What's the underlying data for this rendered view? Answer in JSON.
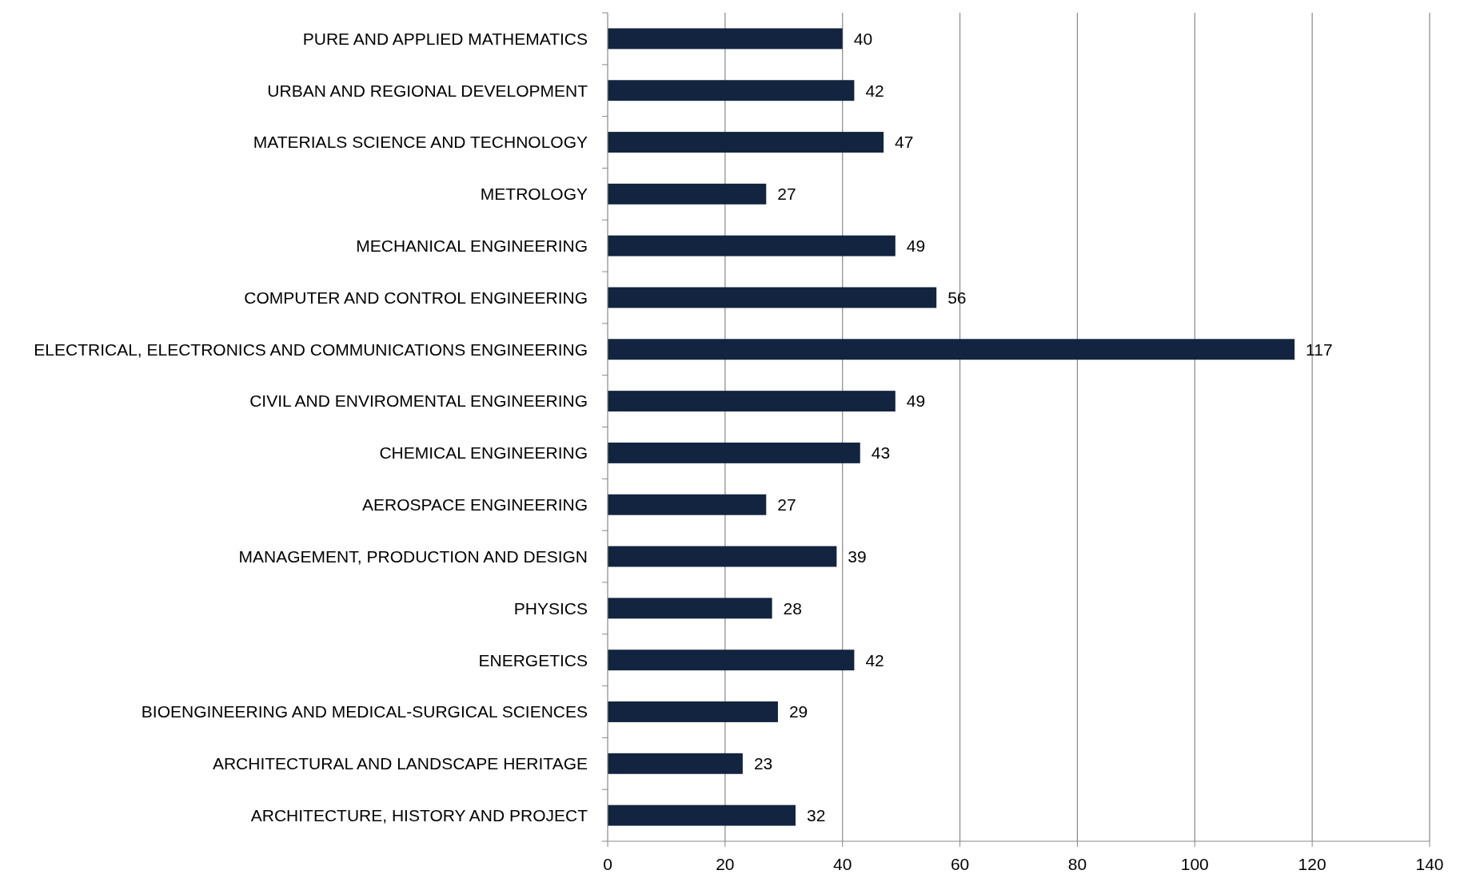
{
  "chart_data": {
    "type": "bar",
    "orientation": "horizontal",
    "categories": [
      "PURE AND APPLIED MATHEMATICS",
      "URBAN AND REGIONAL DEVELOPMENT",
      "MATERIALS SCIENCE AND TECHNOLOGY",
      "METROLOGY",
      "MECHANICAL ENGINEERING",
      "COMPUTER AND CONTROL ENGINEERING",
      "ELECTRICAL, ELECTRONICS AND COMMUNICATIONS ENGINEERING",
      "CIVIL AND ENVIROMENTAL ENGINEERING",
      "CHEMICAL ENGINEERING",
      "AEROSPACE ENGINEERING",
      "MANAGEMENT, PRODUCTION AND DESIGN",
      "PHYSICS",
      "ENERGETICS",
      "BIOENGINEERING AND MEDICAL-SURGICAL SCIENCES",
      "ARCHITECTURAL AND LANDSCAPE HERITAGE",
      "ARCHITECTURE, HISTORY AND PROJECT"
    ],
    "values": [
      40,
      42,
      47,
      27,
      49,
      56,
      117,
      49,
      43,
      27,
      39,
      28,
      42,
      29,
      23,
      32
    ],
    "color": "#12243f",
    "xlim": [
      0,
      140
    ],
    "xticks": [
      0,
      20,
      40,
      60,
      80,
      100,
      120,
      140
    ],
    "grid": "x",
    "data_labels": true
  }
}
